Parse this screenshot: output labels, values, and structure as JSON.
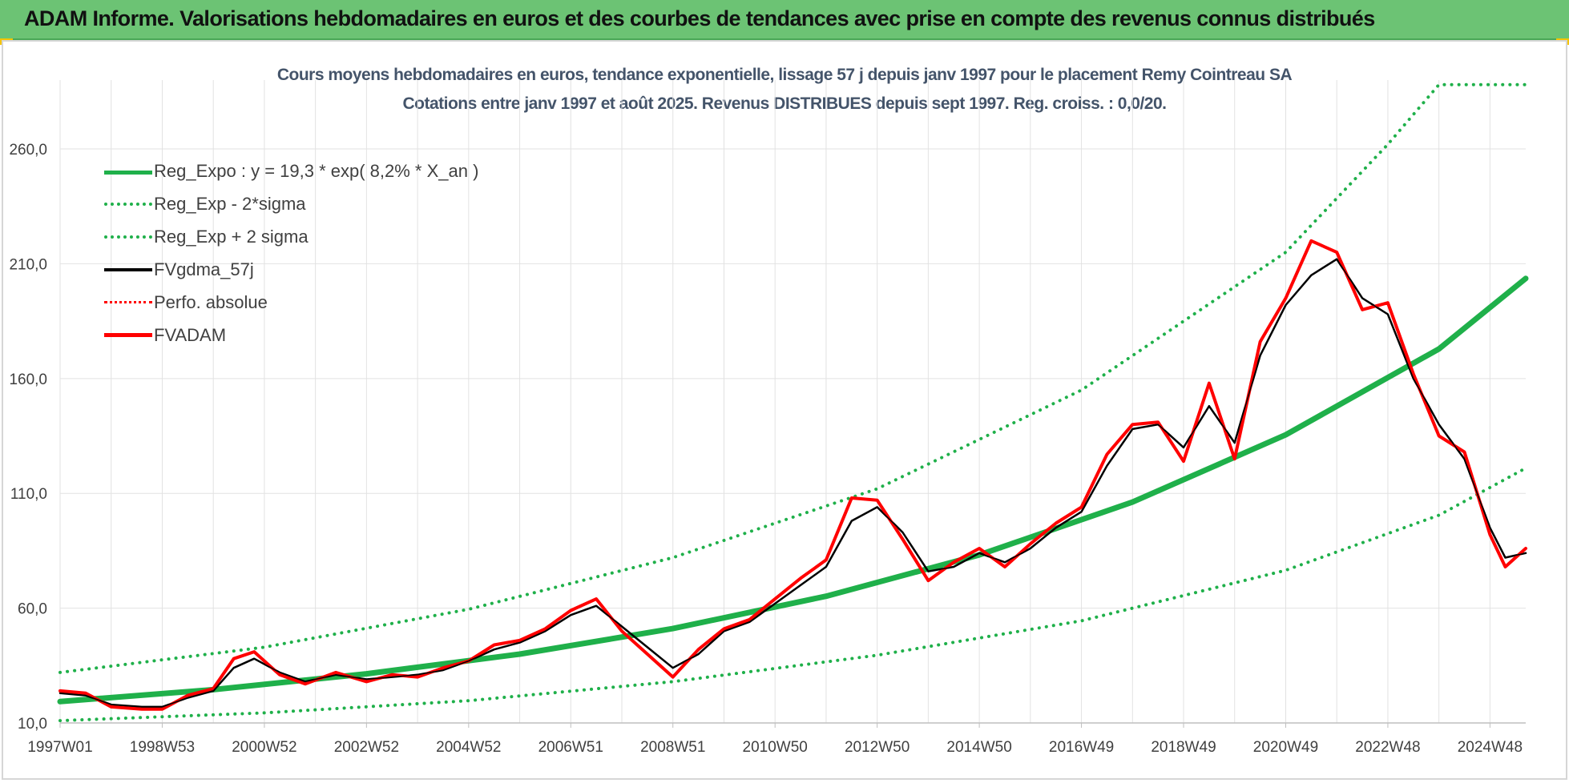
{
  "header": {
    "title": "ADAM Informe. Valorisations hebdomadaires en euros et des courbes de tendances avec prise en compte des revenus connus distribués"
  },
  "chart_data": {
    "type": "line",
    "title": "Cours moyens hebdomadaires en euros, tendance exponentielle, lissage 57 j depuis janv 1997 pour le placement Remy Cointreau SA",
    "subtitle": "Cotations entre janv 1997 et août 2025.  Revenus DISTRIBUES depuis sept 1997.  Reg. croiss. : 0,0/20.",
    "xlabel": "",
    "ylabel": "",
    "ylim": [
      10,
      290
    ],
    "y_ticks": [
      "10,0",
      "60,0",
      "110,0",
      "160,0",
      "210,0",
      "260,0"
    ],
    "x_ticks": [
      "1997W01",
      "1998W53",
      "2000W52",
      "2002W52",
      "2004W52",
      "2006W51",
      "2008W51",
      "2010W50",
      "2012W50",
      "2014W50",
      "2016W49",
      "2018W49",
      "2020W49",
      "2022W48",
      "2024W48"
    ],
    "x_tick_years": [
      1997.0,
      1999.0,
      2001.0,
      2003.0,
      2005.0,
      2007.0,
      2009.0,
      2011.0,
      2013.0,
      2015.0,
      2017.0,
      2019.0,
      2021.0,
      2023.0,
      2025.0
    ],
    "xlim": [
      1997.0,
      2025.7
    ],
    "grid": true,
    "legend_position": "top-left",
    "legend": [
      {
        "label": "Reg_Expo : y = 19,3 * exp( 8,2% *  X_an )",
        "style": "solid-green"
      },
      {
        "label": "Reg_Exp - 2*sigma",
        "style": "dot-green"
      },
      {
        "label": "Reg_Exp + 2 sigma",
        "style": "dot-green"
      },
      {
        "label": "FVgdma_57j",
        "style": "solid-black"
      },
      {
        "label": "Perfo. absolue",
        "style": "dot-red"
      },
      {
        "label": "FVADAM",
        "style": "solid-red"
      }
    ],
    "series": [
      {
        "name": "Reg_Expo : y = 19,3 * exp( 8,2% *  X_an )",
        "x": [
          1997.0,
          2000.0,
          2003.0,
          2006.0,
          2009.0,
          2012.0,
          2015.0,
          2018.0,
          2021.0,
          2024.0,
          2025.7
        ],
        "values": [
          19.3,
          24.5,
          31.4,
          40.0,
          51.1,
          65.2,
          83.2,
          106.2,
          135.5,
          172.9,
          203.6
        ]
      },
      {
        "name": "Reg_Exp - 2*sigma",
        "x": [
          1997.0,
          2001.0,
          2005.0,
          2009.0,
          2013.0,
          2017.0,
          2021.0,
          2024.0,
          2025.7
        ],
        "values": [
          11.0,
          14.4,
          19.7,
          28.0,
          39.5,
          54.5,
          76.5,
          100.5,
          121.0
        ]
      },
      {
        "name": "Reg_Exp + 2 sigma",
        "x": [
          1997.0,
          2001.0,
          2005.0,
          2009.0,
          2013.0,
          2017.0,
          2021.0,
          2023.0,
          2024.0,
          2025.7
        ],
        "values": [
          32.0,
          43.0,
          59.5,
          82.0,
          112.0,
          155.0,
          215.0,
          262.0,
          288.0,
          288.0
        ]
      },
      {
        "name": "FVgdma_57j",
        "x": [
          1997.0,
          1997.5,
          1998.0,
          1998.6,
          1999.0,
          1999.5,
          2000.0,
          2000.4,
          2000.8,
          2001.3,
          2001.8,
          2002.4,
          2003.0,
          2003.5,
          2004.0,
          2004.5,
          2005.0,
          2005.5,
          2006.0,
          2006.5,
          2007.0,
          2007.5,
          2008.0,
          2008.5,
          2009.0,
          2009.5,
          2010.0,
          2010.5,
          2011.0,
          2011.5,
          2012.0,
          2012.5,
          2013.0,
          2013.5,
          2014.0,
          2014.5,
          2015.0,
          2015.5,
          2016.0,
          2016.5,
          2017.0,
          2017.5,
          2018.0,
          2018.5,
          2019.0,
          2019.5,
          2020.0,
          2020.5,
          2021.0,
          2021.5,
          2022.0,
          2022.5,
          2023.0,
          2023.5,
          2024.0,
          2024.5,
          2025.0,
          2025.3,
          2025.7
        ],
        "values": [
          23,
          22,
          18,
          17,
          17,
          21,
          24,
          34,
          38,
          32,
          28,
          31,
          29,
          30,
          31,
          33,
          37,
          42,
          45,
          50,
          57,
          61,
          52,
          43,
          34,
          40,
          50,
          54,
          62,
          70,
          78,
          98,
          104,
          93,
          76,
          78,
          84,
          80,
          86,
          95,
          102,
          122,
          138,
          140,
          130,
          148,
          132,
          170,
          192,
          205,
          212,
          195,
          188,
          160,
          140,
          125,
          95,
          82,
          84
        ]
      },
      {
        "name": "FVADAM",
        "x": [
          1997.0,
          1997.5,
          1998.0,
          1998.6,
          1999.0,
          1999.5,
          2000.0,
          2000.4,
          2000.8,
          2001.3,
          2001.8,
          2002.4,
          2003.0,
          2003.5,
          2004.0,
          2004.5,
          2005.0,
          2005.5,
          2006.0,
          2006.5,
          2007.0,
          2007.5,
          2008.0,
          2008.5,
          2009.0,
          2009.5,
          2010.0,
          2010.5,
          2011.0,
          2011.5,
          2012.0,
          2012.5,
          2013.0,
          2013.5,
          2014.0,
          2014.5,
          2015.0,
          2015.5,
          2016.0,
          2016.5,
          2017.0,
          2017.5,
          2018.0,
          2018.5,
          2019.0,
          2019.5,
          2020.0,
          2020.5,
          2021.0,
          2021.5,
          2022.0,
          2022.5,
          2023.0,
          2023.5,
          2024.0,
          2024.5,
          2025.0,
          2025.3,
          2025.7
        ],
        "values": [
          24,
          23,
          17,
          16,
          16,
          22,
          25,
          38,
          41,
          31,
          27,
          32,
          28,
          31,
          30,
          34,
          37,
          44,
          46,
          51,
          59,
          64,
          50,
          40,
          30,
          42,
          51,
          55,
          64,
          73,
          81,
          108,
          107,
          90,
          72,
          80,
          86,
          78,
          88,
          97,
          104,
          127,
          140,
          141,
          124,
          158,
          125,
          176,
          195,
          220,
          215,
          190,
          193,
          162,
          135,
          128,
          92,
          78,
          86
        ]
      }
    ]
  }
}
